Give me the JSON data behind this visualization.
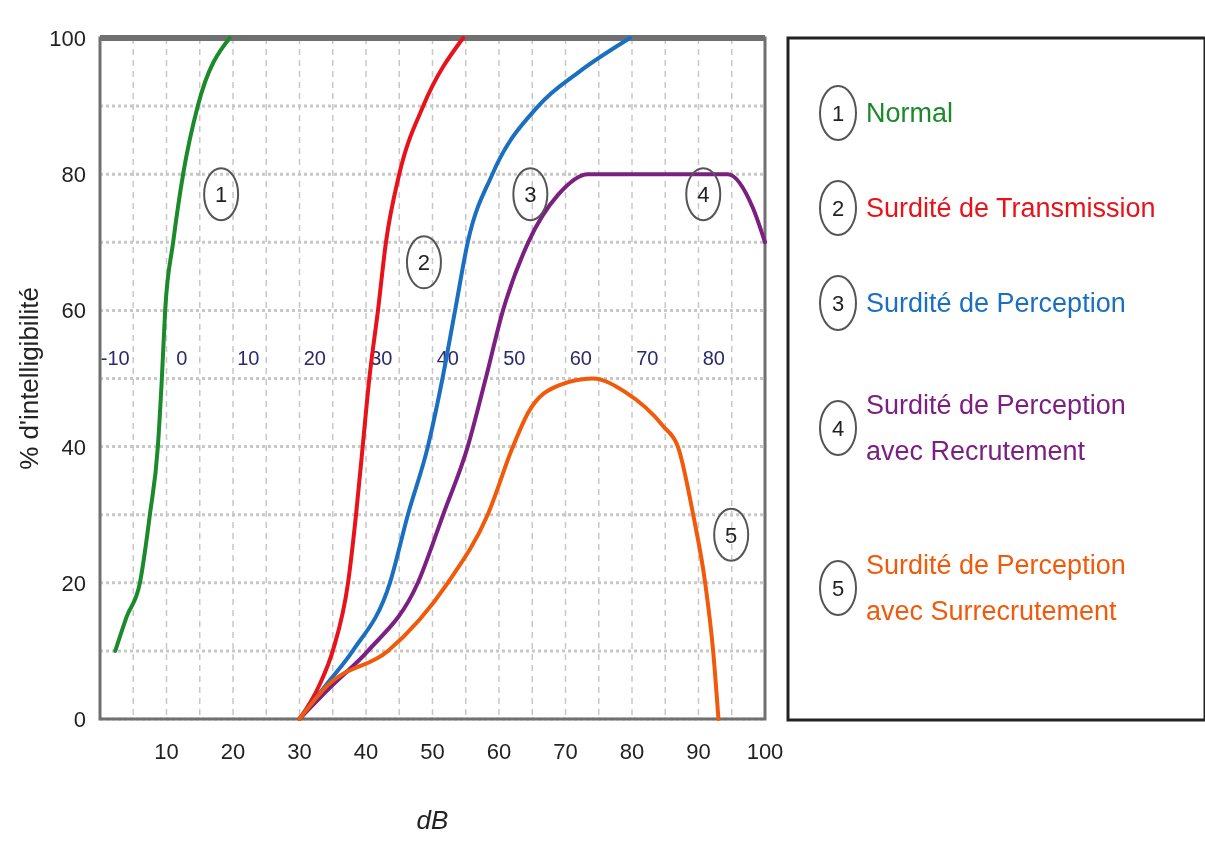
{
  "chart_data": {
    "type": "line",
    "xlabel": "dB",
    "ylabel": "% d'intelligibilité",
    "xlim": [
      0,
      100
    ],
    "ylim": [
      0,
      100
    ],
    "xticks": [
      {
        "value": 5,
        "label": null
      },
      10,
      {
        "value": 15,
        "label": null
      },
      20,
      {
        "value": 25,
        "label": null
      },
      30,
      {
        "value": 35,
        "label": null
      },
      40,
      {
        "value": 45,
        "label": null
      },
      50,
      {
        "value": 55,
        "label": null
      },
      60,
      {
        "value": 65,
        "label": null
      },
      70,
      {
        "value": 75,
        "label": null
      },
      80,
      {
        "value": 85,
        "label": null
      },
      90,
      {
        "value": 95,
        "label": null
      },
      100
    ],
    "yticks": [
      0,
      {
        "value": 10,
        "label": null
      },
      20,
      {
        "value": 30,
        "label": null
      },
      40,
      {
        "value": 50,
        "label": null
      },
      60,
      {
        "value": 70,
        "label": null
      },
      80,
      {
        "value": 90,
        "label": null
      },
      100
    ],
    "x2lim": [
      -12.3,
      87.7
    ],
    "x2ticks": [
      -10,
      0,
      10,
      20,
      30,
      40,
      50,
      60,
      70,
      80
    ],
    "grid": true,
    "legend": "right",
    "line_style": "solid",
    "marker": "none",
    "series": [
      {
        "name": "Normal",
        "color": "#1a8a2a",
        "x": [
          2.3,
          4,
          6,
          7.5,
          8.7,
          9.3,
          9.8,
          11,
          12.5,
          14.7,
          19.5
        ],
        "values": [
          10,
          15,
          20,
          30,
          40,
          50,
          60,
          70,
          80,
          90,
          100
        ]
      },
      {
        "name": "Surdité de Transmission",
        "color": "#e8121b",
        "x": [
          30,
          33,
          35,
          37.3,
          38.5,
          39.5,
          40.5,
          41.8,
          43,
          45,
          48.6,
          54.6
        ],
        "values": [
          0,
          5,
          10,
          20,
          30,
          40,
          50,
          60,
          70,
          80,
          90,
          100
        ]
      },
      {
        "name": "Surdité de Perception",
        "color": "#1a6fc0",
        "x": [
          30,
          34,
          38,
          43.6,
          46.3,
          49.3,
          51.5,
          53.4,
          55.3,
          59,
          65.9,
          72,
          79.7
        ],
        "values": [
          0,
          5,
          10,
          20,
          30,
          40,
          50,
          60,
          70,
          80,
          90,
          95,
          100
        ]
      },
      {
        "name": "Surdité de Perception avec Recrutement",
        "color": "#7b2080",
        "x": [
          30,
          35,
          40.3,
          47.8,
          51.6,
          55.3,
          58,
          60.6,
          64.4,
          68.9,
          73.4,
          85,
          94.4,
          98.2,
          100
        ],
        "values": [
          0,
          5,
          10,
          20,
          30,
          40,
          50,
          60,
          70,
          77,
          80,
          80,
          80,
          75,
          70
        ]
      },
      {
        "name": "Surdité de Perception avec Surrecrutement",
        "color": "#f05a0a",
        "x": [
          30,
          34.3,
          43.3,
          52.3,
          58.3,
          62.1,
          64.4,
          69,
          74.1,
          79,
          84.7,
          86.9,
          89.2,
          91,
          92.2,
          93
        ],
        "values": [
          0,
          5,
          10,
          20,
          30,
          40,
          45,
          49,
          50,
          48,
          43,
          40,
          30,
          20,
          10,
          0
        ]
      }
    ],
    "annotations": [
      "1",
      "2",
      "3",
      "4",
      "5"
    ]
  }
}
